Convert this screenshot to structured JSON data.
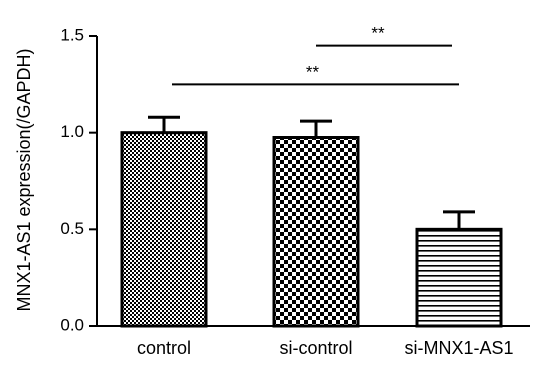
{
  "chart_data": {
    "type": "bar",
    "categories": [
      "control",
      "si-control",
      "si-MNX1-AS1"
    ],
    "values": [
      1.0,
      0.975,
      0.5
    ],
    "errors": [
      0.08,
      0.085,
      0.09
    ],
    "patterns": [
      "fine-checker",
      "coarse-checker",
      "horizontal-lines"
    ],
    "ylabel": "MNX1-AS1 expression(/GAPDH)",
    "ylim": [
      0,
      1.5
    ],
    "yticks": [
      0.0,
      0.5,
      1.0,
      1.5
    ],
    "ytick_labels": [
      "0.0",
      "0.5",
      "1.0",
      "1.5"
    ],
    "significance": [
      {
        "from": 1,
        "to": 2,
        "y": 1.45,
        "label": "**"
      },
      {
        "from": 0,
        "to": 2,
        "y": 1.25,
        "label": "**"
      }
    ],
    "grid": false,
    "colors": {
      "bar_stroke": "#000000",
      "background": "#ffffff"
    }
  }
}
